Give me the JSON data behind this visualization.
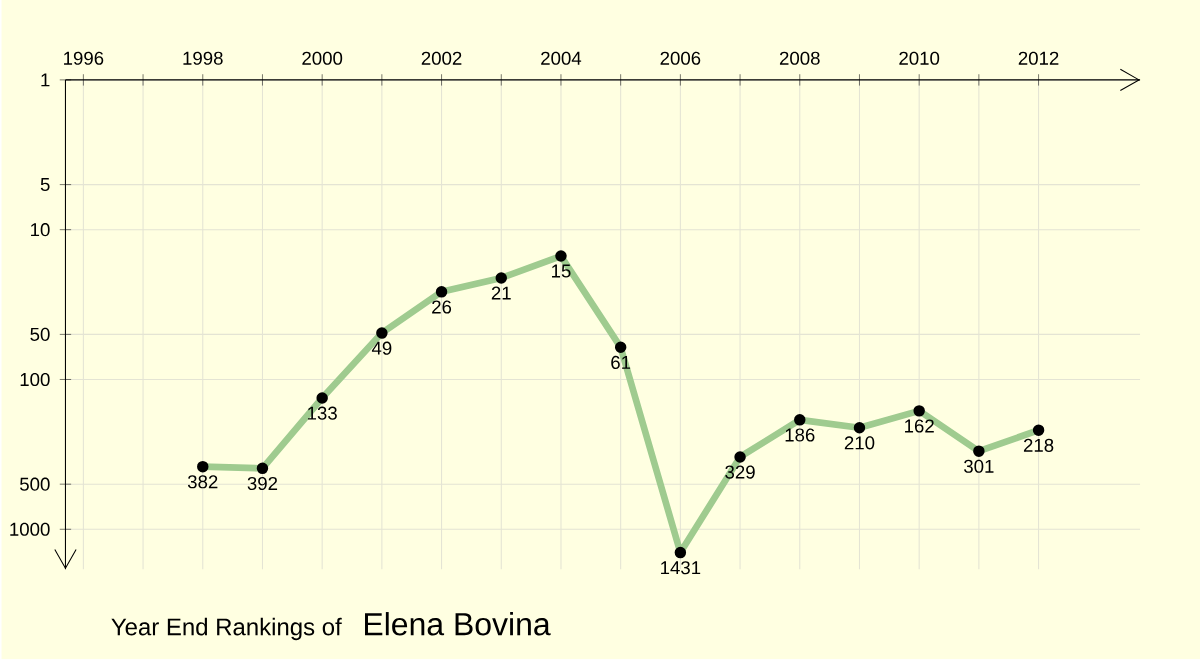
{
  "chart_data": {
    "type": "line",
    "title": "Year End Rankings of",
    "subtitle": "Elena Bovina",
    "x": [
      1998,
      1999,
      2000,
      2001,
      2002,
      2003,
      2004,
      2005,
      2006,
      2007,
      2008,
      2009,
      2010,
      2011,
      2012
    ],
    "values": [
      382,
      392,
      133,
      49,
      26,
      21,
      15,
      61,
      1431,
      329,
      186,
      210,
      162,
      301,
      218
    ],
    "color": "#9fcb8f",
    "marker": "circle",
    "line_style": "solid",
    "data_labels": true,
    "log": "y",
    "grid": true,
    "xlim": [
      1995.7,
      2013.7
    ],
    "ylim": [
      1850,
      1
    ],
    "xticks": [
      1996,
      {
        "value": 1997,
        "label": null
      },
      1998,
      {
        "value": 1999,
        "label": null
      },
      2000,
      {
        "value": 2001,
        "label": null
      },
      2002,
      {
        "value": 2003,
        "label": null
      },
      2004,
      {
        "value": 2005,
        "label": null
      },
      2006,
      {
        "value": 2007,
        "label": null
      },
      2008,
      {
        "value": 2009,
        "label": null
      },
      2010,
      {
        "value": 2011,
        "label": null
      },
      2012
    ],
    "yticks": [
      1,
      5,
      10,
      50,
      100,
      500,
      1000
    ]
  }
}
